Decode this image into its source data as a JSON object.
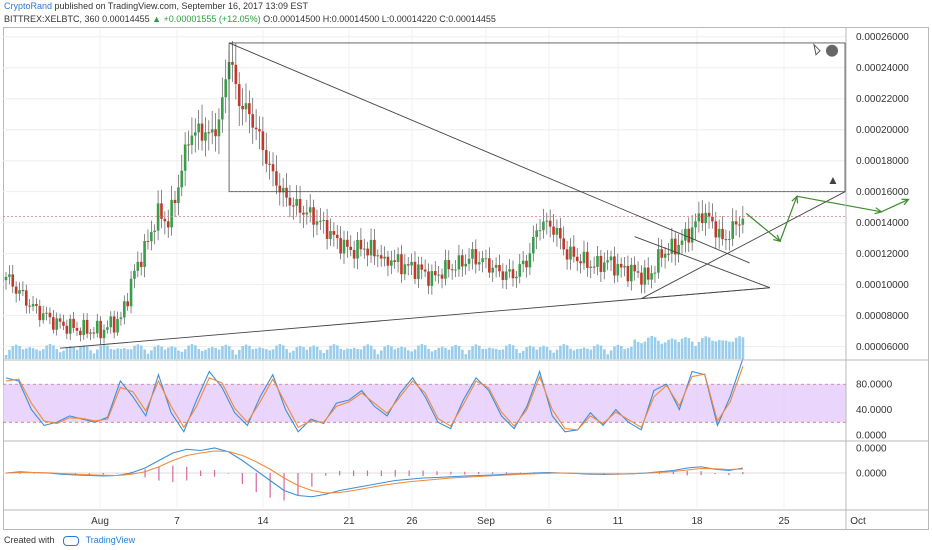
{
  "header": {
    "author": "CryptoRand",
    "published": "published on TradingView.com, September 16, 2017 13:09 EST",
    "symbol": "BITTREX:XELBTC, 360",
    "last": "0.00014455",
    "change": "▲ +0.00001555 (+12.05%)",
    "ohlc": "O:0.00014500 H:0.00014500 L:0.00014220 C:0.00014455"
  },
  "footer": {
    "created": "Created with",
    "brand": "TradingView"
  },
  "colors": {
    "up": "#3a9d4a",
    "down": "#c0392b",
    "volume": "#8ec8ea",
    "stoch_band": "#e3c8fb",
    "k_line": "#3b8fd9",
    "d_line": "#f08a3c",
    "arrow": "#3d8b2f"
  },
  "chart_data": [
    {
      "type": "candlestick",
      "title": "BITTREX:XELBTC, 360",
      "x_ticks": [
        "Aug",
        "7",
        "14",
        "21",
        "26",
        "Sep",
        "6",
        "11",
        "18",
        "25",
        "Oct"
      ],
      "y_ticks": [
        "0.00026000",
        "0.00024000",
        "0.00022000",
        "0.00020000",
        "0.00018000",
        "0.00016000",
        "0.00014000",
        "0.00012000",
        "0.00010000",
        "0.00008000",
        "0.00006000"
      ],
      "ylim": [
        5.2e-05,
        0.000265
      ],
      "resistance_level": 0.00016,
      "last_price_level": 0.000144,
      "close_path": [
        [
          0,
          0.000105
        ],
        [
          8,
          8.5e-05
        ],
        [
          15,
          7.5e-05
        ],
        [
          22,
          7.1e-05
        ],
        [
          28,
          7e-05
        ],
        [
          34,
          7.8e-05
        ],
        [
          38,
          0.000108
        ],
        [
          42,
          0.000128
        ],
        [
          45,
          0.000146
        ],
        [
          48,
          0.00014
        ],
        [
          51,
          0.000164
        ],
        [
          54,
          0.000195
        ],
        [
          57,
          0.0002
        ],
        [
          60,
          0.000196
        ],
        [
          63,
          0.000204
        ],
        [
          66,
          0.000248
        ],
        [
          69,
          0.000218
        ],
        [
          72,
          0.00021
        ],
        [
          75,
          0.000195
        ],
        [
          78,
          0.000175
        ],
        [
          82,
          0.000158
        ],
        [
          86,
          0.00015
        ],
        [
          90,
          0.000145
        ],
        [
          94,
          0.000138
        ],
        [
          98,
          0.000128
        ],
        [
          102,
          0.000122
        ],
        [
          106,
          0.000124
        ],
        [
          110,
          0.00012
        ],
        [
          114,
          0.000116
        ],
        [
          118,
          0.000112
        ],
        [
          122,
          0.00011
        ],
        [
          126,
          0.000104
        ],
        [
          130,
          0.00011
        ],
        [
          134,
          0.000113
        ],
        [
          138,
          0.000118
        ],
        [
          142,
          0.000114
        ],
        [
          146,
          0.000108
        ],
        [
          150,
          0.000106
        ],
        [
          154,
          0.000115
        ],
        [
          158,
          0.00014
        ],
        [
          162,
          0.000137
        ],
        [
          166,
          0.00012
        ],
        [
          170,
          0.000116
        ],
        [
          174,
          0.000112
        ],
        [
          178,
          0.000115
        ],
        [
          182,
          0.00011
        ],
        [
          186,
          0.000108
        ],
        [
          190,
          0.000104
        ],
        [
          194,
          0.00012
        ],
        [
          198,
          0.000124
        ],
        [
          202,
          0.000133
        ],
        [
          206,
          0.000146
        ],
        [
          209,
          0.00014
        ],
        [
          212,
          0.000128
        ],
        [
          215,
          0.000136
        ],
        [
          218,
          0.000144
        ]
      ],
      "annotations": {
        "resistance_rectangle": {
          "y_top": 0.000256,
          "y_bottom": 0.00016
        },
        "upper_trendline": [
          [
            66,
            0.000256
          ],
          [
            220,
            0.000114
          ]
        ],
        "lower_trendline": [
          [
            16,
            5.9e-05
          ],
          [
            226,
            9.8e-05
          ]
        ],
        "small_wedge": [
          [
            188,
            9.1e-05
          ],
          [
            226,
            9.8e-05
          ],
          [
            186,
            0.000131
          ]
        ],
        "projection_path": [
          [
            219,
            0.000146
          ],
          [
            229,
            0.000128
          ],
          [
            234,
            0.000157
          ],
          [
            259,
            0.000147
          ],
          [
            267,
            0.000155
          ]
        ]
      }
    },
    {
      "type": "line",
      "title": "Stochastic RSI",
      "y_ticks": [
        "80.0000",
        "40.0000",
        "0.0000"
      ],
      "ylim": [
        -8,
        115
      ],
      "band": [
        20,
        80
      ],
      "series": [
        {
          "values": [
            90,
            85,
            40,
            15,
            20,
            30,
            25,
            20,
            28,
            85,
            60,
            30,
            95,
            35,
            5,
            55,
            100,
            75,
            35,
            15,
            60,
            95,
            40,
            5,
            25,
            18,
            50,
            55,
            70,
            45,
            30,
            65,
            90,
            60,
            20,
            10,
            55,
            90,
            70,
            30,
            10,
            45,
            100,
            30,
            5,
            8,
            35,
            15,
            40,
            20,
            8,
            70,
            80,
            40,
            100,
            95,
            15,
            60,
            120
          ]
        },
        {
          "values": [
            85,
            88,
            50,
            22,
            18,
            27,
            26,
            22,
            25,
            75,
            68,
            38,
            85,
            45,
            12,
            45,
            90,
            82,
            42,
            20,
            52,
            88,
            50,
            12,
            22,
            20,
            45,
            52,
            66,
            50,
            34,
            60,
            85,
            66,
            26,
            14,
            48,
            85,
            74,
            36,
            14,
            40,
            92,
            40,
            10,
            8,
            30,
            18,
            36,
            24,
            12,
            60,
            78,
            46,
            92,
            96,
            22,
            52,
            108
          ]
        }
      ]
    },
    {
      "type": "line",
      "title": "MACD",
      "y_ticks": [
        "0.0000",
        "0.0000"
      ],
      "ylim": [
        -1.4,
        1.2
      ],
      "series": [
        {
          "values": [
            0,
            0.05,
            0.02,
            0,
            -0.05,
            -0.08,
            -0.1,
            -0.12,
            -0.1,
            0,
            0.2,
            0.5,
            0.8,
            0.95,
            0.9,
            1.0,
            0.85,
            0.5,
            0.1,
            -0.3,
            -0.7,
            -0.9,
            -0.95,
            -0.85,
            -0.7,
            -0.6,
            -0.5,
            -0.4,
            -0.3,
            -0.25,
            -0.2,
            -0.18,
            -0.15,
            -0.12,
            -0.1,
            -0.08,
            -0.05,
            -0.03,
            0,
            0.02,
            0,
            -0.02,
            -0.05,
            -0.06,
            -0.05,
            -0.03,
            0,
            0.05,
            0.1,
            0.2,
            0.25,
            0.15,
            0.1,
            0.2
          ]
        },
        {
          "values": [
            0,
            0.02,
            0.02,
            0.01,
            -0.02,
            -0.05,
            -0.07,
            -0.09,
            -0.1,
            -0.05,
            0.05,
            0.25,
            0.5,
            0.7,
            0.8,
            0.88,
            0.86,
            0.7,
            0.45,
            0.15,
            -0.2,
            -0.5,
            -0.7,
            -0.8,
            -0.78,
            -0.7,
            -0.6,
            -0.5,
            -0.42,
            -0.35,
            -0.3,
            -0.25,
            -0.2,
            -0.17,
            -0.14,
            -0.11,
            -0.08,
            -0.05,
            -0.03,
            -0.01,
            0,
            -0.01,
            -0.03,
            -0.04,
            -0.04,
            -0.03,
            -0.01,
            0.02,
            0.06,
            0.12,
            0.18,
            0.17,
            0.14,
            0.16
          ]
        }
      ]
    }
  ]
}
